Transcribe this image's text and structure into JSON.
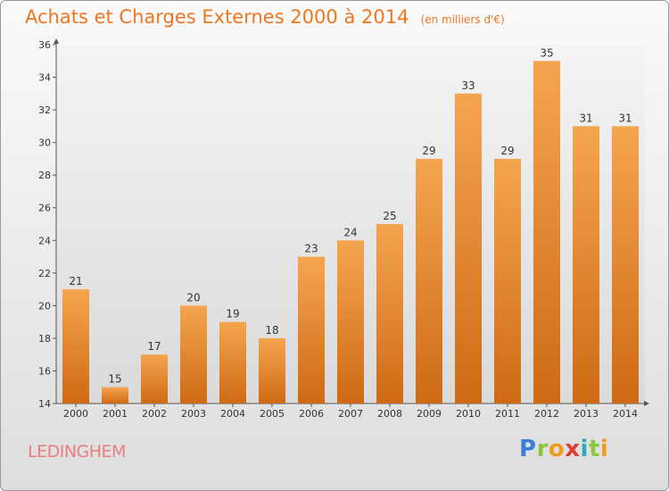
{
  "header": {
    "title": "Achats et Charges Externes 2000 à 2014",
    "subtitle": "(en milliers d'€)"
  },
  "footer": {
    "commune": "LEDINGHEM",
    "logo_text": "Proxiti",
    "logo_letters": [
      {
        "char": "P",
        "color": "#3a7fd5"
      },
      {
        "char": "r",
        "color": "#8cc63e"
      },
      {
        "char": "o",
        "color": "#f29a1d"
      },
      {
        "char": "x",
        "color": "#e03c2e"
      },
      {
        "char": "i",
        "color": "#2fa8b9"
      },
      {
        "char": "t",
        "color": "#8cc63e"
      },
      {
        "char": "i",
        "color": "#f29a1d"
      }
    ]
  },
  "chart_data": {
    "type": "bar",
    "title": "Achats et Charges Externes 2000 à 2014",
    "subtitle": "(en milliers d'€)",
    "categories": [
      "2000",
      "2001",
      "2002",
      "2003",
      "2004",
      "2005",
      "2006",
      "2007",
      "2008",
      "2009",
      "2010",
      "2011",
      "2012",
      "2013",
      "2014"
    ],
    "values": [
      21,
      15,
      17,
      20,
      19,
      18,
      23,
      24,
      25,
      29,
      33,
      29,
      35,
      31,
      31
    ],
    "ylim": [
      14,
      36
    ],
    "yticks": [
      14,
      16,
      18,
      20,
      22,
      24,
      26,
      28,
      30,
      32,
      34,
      36
    ],
    "grid": false,
    "legend": "none",
    "bar_color_top": "#f5a54f",
    "bar_color_bottom": "#cf6a14"
  }
}
